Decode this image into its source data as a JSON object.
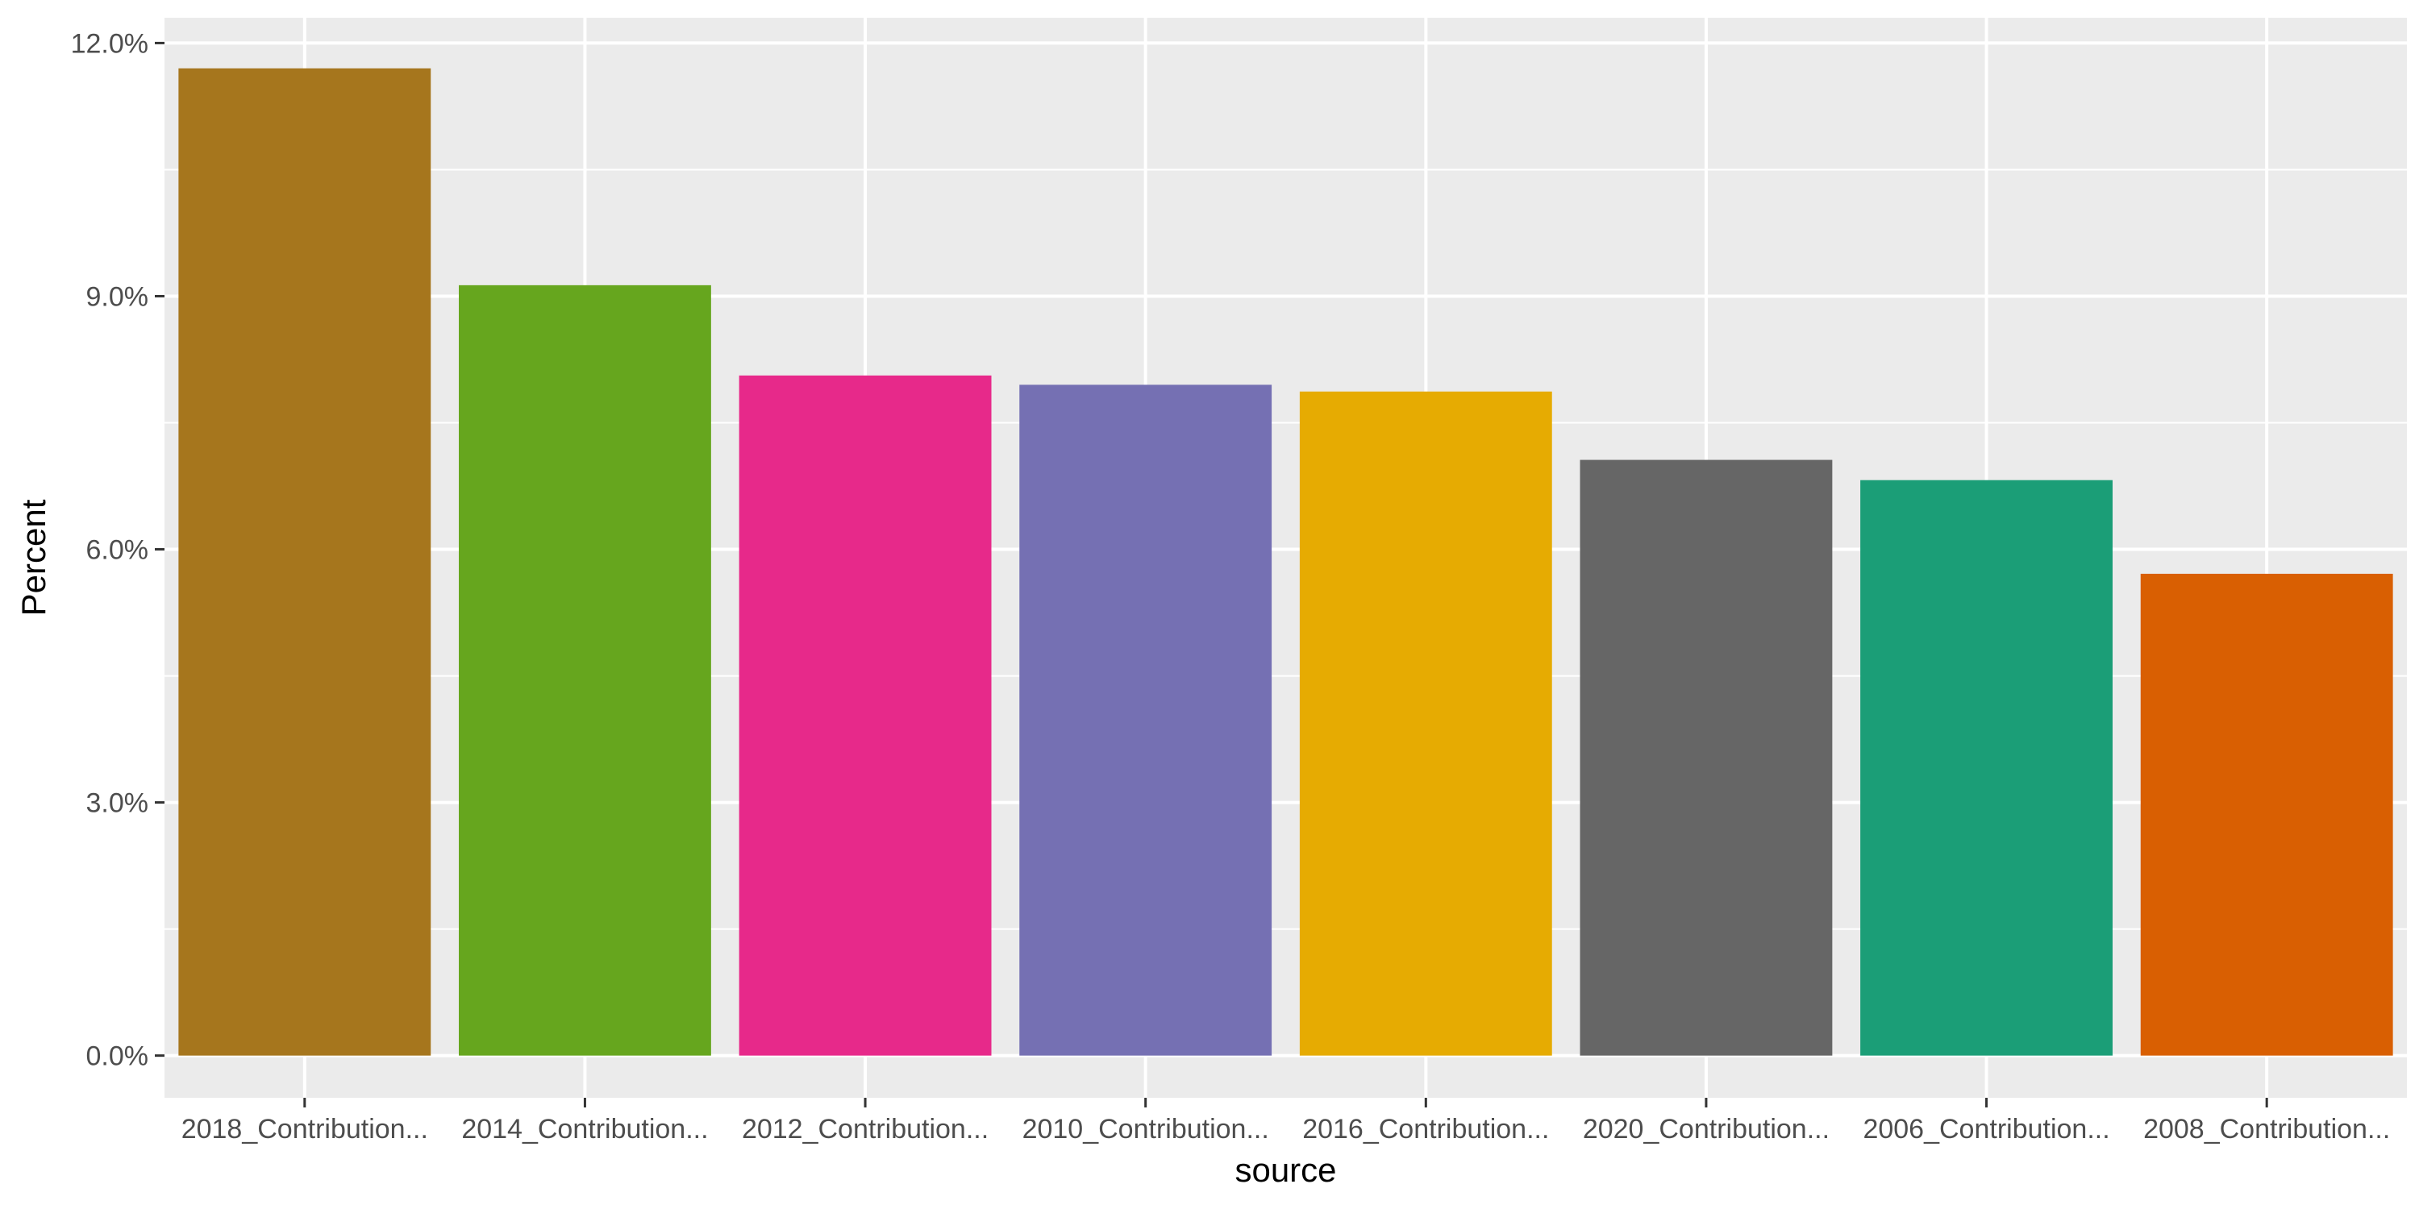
{
  "chart_data": {
    "type": "bar",
    "title": "",
    "xlabel": "source",
    "ylabel": "Percent",
    "categories": [
      "2018_Contribution...",
      "2014_Contribution...",
      "2012_Contribution...",
      "2010_Contribution...",
      "2016_Contribution...",
      "2020_Contribution...",
      "2006_Contribution...",
      "2008_Contribution..."
    ],
    "values": [
      11.7,
      9.13,
      8.06,
      7.95,
      7.87,
      7.06,
      6.82,
      5.71
    ],
    "colors": [
      "#A6761D",
      "#66A61E",
      "#E7298A",
      "#7570B3",
      "#E6AB02",
      "#666666",
      "#1B9E77",
      "#D95F02"
    ],
    "ylim": [
      -0.5,
      12.3
    ],
    "yticks": [
      0,
      3,
      6,
      9,
      12
    ],
    "ytick_labels": [
      "0.0%",
      "3.0%",
      "6.0%",
      "9.0%",
      "12.0%"
    ],
    "grid": true,
    "legend": "none",
    "panel_background": "#EBEBEB",
    "grid_color": "#FFFFFF"
  }
}
